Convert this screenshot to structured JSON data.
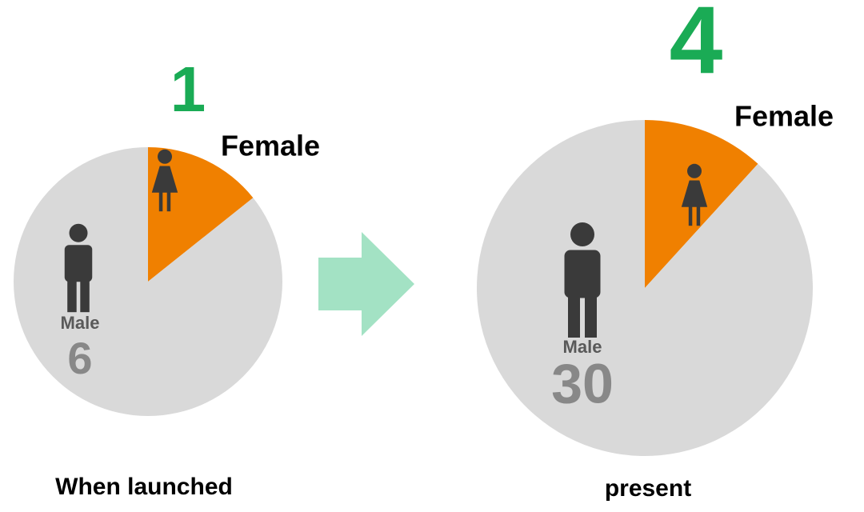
{
  "chart_data": [
    {
      "type": "pie",
      "title": "When launched",
      "categories": [
        "Female",
        "Male"
      ],
      "values": [
        1,
        6
      ],
      "colors": [
        "#f08000",
        "#d9d9d9"
      ]
    },
    {
      "type": "pie",
      "title": "present",
      "categories": [
        "Female",
        "Male"
      ],
      "values": [
        4,
        30
      ],
      "colors": [
        "#f08000",
        "#d9d9d9"
      ]
    }
  ]
}
